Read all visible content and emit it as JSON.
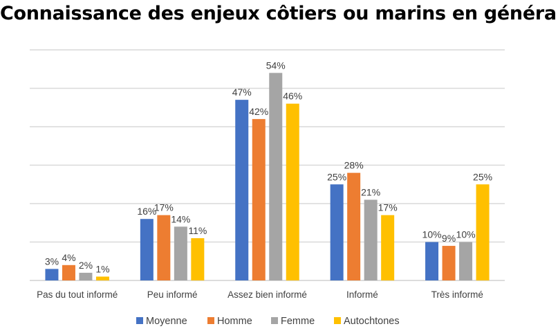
{
  "chart_data": {
    "type": "bar",
    "title": "Connaissance des enjeux côtiers ou marins en général",
    "categories": [
      "Pas du tout informé",
      "Peu informé",
      "Assez bien informé",
      "Informé",
      "Très informé"
    ],
    "series": [
      {
        "name": "Moyenne",
        "color": "#4472C4",
        "values": [
          3,
          16,
          47,
          25,
          10
        ]
      },
      {
        "name": "Homme",
        "color": "#ED7D31",
        "values": [
          4,
          17,
          42,
          28,
          9
        ]
      },
      {
        "name": "Femme",
        "color": "#A5A5A5",
        "values": [
          2,
          14,
          54,
          21,
          10
        ]
      },
      {
        "name": "Autochtones",
        "color": "#FFC000",
        "values": [
          1,
          11,
          46,
          17,
          25
        ]
      }
    ],
    "value_format": "percent",
    "ylim": [
      0,
      60
    ],
    "grid": true,
    "y_axis_labels_shown": false,
    "legend": "bottom"
  }
}
